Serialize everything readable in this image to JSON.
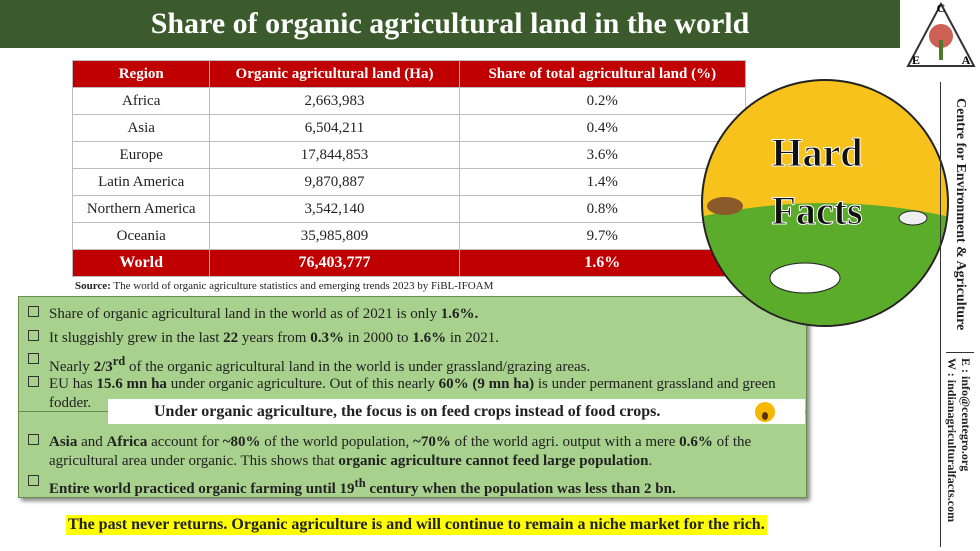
{
  "header": {
    "title": "Share of organic agricultural land in the world"
  },
  "logo": {
    "letters": [
      "C",
      "E",
      "A"
    ]
  },
  "table": {
    "columns": [
      "Region",
      "Organic agricultural land (Ha)",
      "Share of total agricultural land (%)"
    ],
    "rows": [
      [
        "Africa",
        "2,663,983",
        "0.2%"
      ],
      [
        "Asia",
        "6,504,211",
        "0.4%"
      ],
      [
        "Europe",
        "17,844,853",
        "3.6%"
      ],
      [
        "Latin America",
        "9,870,887",
        "1.4%"
      ],
      [
        "Northern America",
        "3,542,140",
        "0.8%"
      ],
      [
        "Oceania",
        "35,985,809",
        "9.7%"
      ]
    ],
    "total": [
      "World",
      "76,403,777",
      "1.6%"
    ]
  },
  "source": {
    "label": "Source:",
    "text": "The world of organic agriculture statistics and emerging trends 2023 by FiBL-IFOAM"
  },
  "bullets": [
    [
      {
        "text": "Share of organic agricultural land in the world as of 2021 is only "
      },
      {
        "text": "1.6%.",
        "bold": true
      }
    ],
    [
      {
        "text": "It sluggishly grew in the last "
      },
      {
        "text": "22",
        "bold": true
      },
      {
        "text": " years from "
      },
      {
        "text": "0.3%",
        "bold": true
      },
      {
        "text": " in 2000 to "
      },
      {
        "text": "1.6%",
        "bold": true
      },
      {
        "text": " in 2021."
      }
    ],
    [
      {
        "text": "Nearly "
      },
      {
        "text": "2/3",
        "bold": true
      },
      {
        "text": "rd",
        "bold": true,
        "sup": true
      },
      {
        "text": " of the organic agricultural land in the world is under grassland/grazing areas."
      }
    ],
    [
      {
        "text": "EU has "
      },
      {
        "text": "15.6 mn ha",
        "bold": true
      },
      {
        "text": " under organic agriculture. Out of this nearly "
      },
      {
        "text": "60% (9 mn ha)",
        "bold": true
      },
      {
        "text": " is under permanent grassland and green fodder."
      }
    ]
  ],
  "highlight": "Under organic agriculture, the focus is on feed crops instead of food crops.",
  "bullets2": [
    [
      {
        "text": "Asia",
        "bold": true
      },
      {
        "text": " and "
      },
      {
        "text": "Africa",
        "bold": true
      },
      {
        "text": " account for "
      },
      {
        "text": "~80%",
        "bold": true
      },
      {
        "text": " of the world population, "
      },
      {
        "text": "~70%",
        "bold": true
      },
      {
        "text": " of the world agri. output with a mere "
      },
      {
        "text": "0.6%",
        "bold": true
      },
      {
        "text": " of the agricultural area under organic. This shows that "
      },
      {
        "text": "organic agriculture cannot feed large population",
        "bold": true
      },
      {
        "text": "."
      }
    ],
    [
      {
        "text": "Entire world practiced organic farming until 19",
        "bold": true
      },
      {
        "text": "th",
        "bold": true,
        "sup": true
      },
      {
        "text": " century when the population was less than 2 bn.",
        "bold": true
      }
    ]
  ],
  "footer": "The past never returns. Organic agriculture is and will continue to remain a niche market for the rich.",
  "badge": {
    "line1": "Hard",
    "line2": "Facts"
  },
  "side": {
    "org": "Centre for Environment & Agriculture",
    "email": "E : info@centegro.org",
    "web": "W : indianagriculturalfacts.com"
  }
}
